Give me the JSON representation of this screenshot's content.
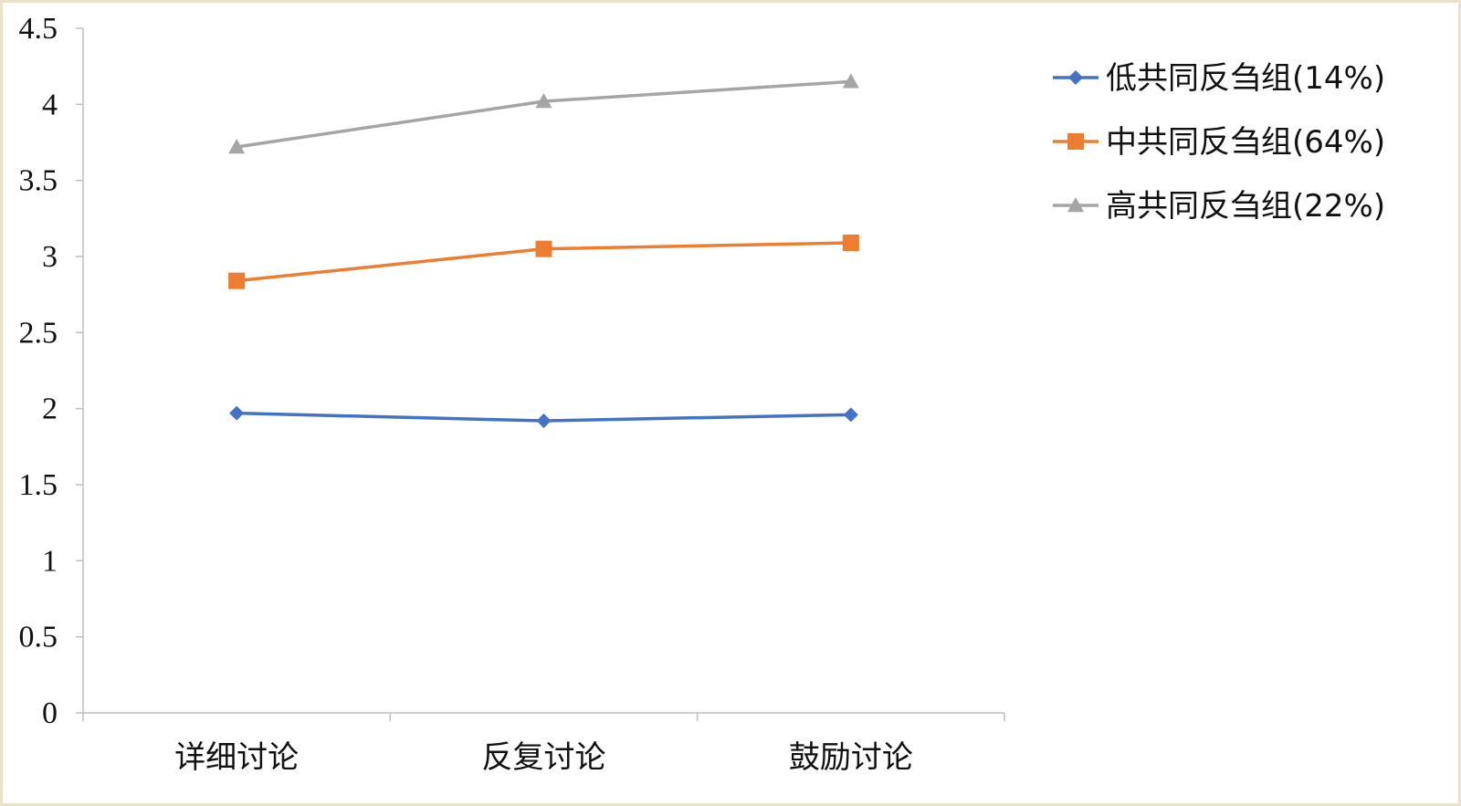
{
  "chart_data": {
    "type": "line",
    "categories": [
      "详细讨论",
      "反复讨论",
      "鼓励讨论"
    ],
    "y_ticks": [
      "0",
      "0.5",
      "1",
      "1.5",
      "2",
      "2.5",
      "3",
      "3.5",
      "4",
      "4.5"
    ],
    "ylim": [
      0,
      4.5
    ],
    "grid": false,
    "legend_position": "right",
    "series": [
      {
        "name": "低共同反刍组(14%)",
        "values": [
          1.97,
          1.92,
          1.96
        ],
        "color": "#4472c4",
        "marker": "diamond"
      },
      {
        "name": "中共同反刍组(64%)",
        "values": [
          2.84,
          3.05,
          3.09
        ],
        "color": "#ed7d31",
        "marker": "square"
      },
      {
        "name": "高共同反刍组(22%)",
        "values": [
          3.72,
          4.02,
          4.15
        ],
        "color": "#a5a5a5",
        "marker": "triangle"
      }
    ]
  }
}
